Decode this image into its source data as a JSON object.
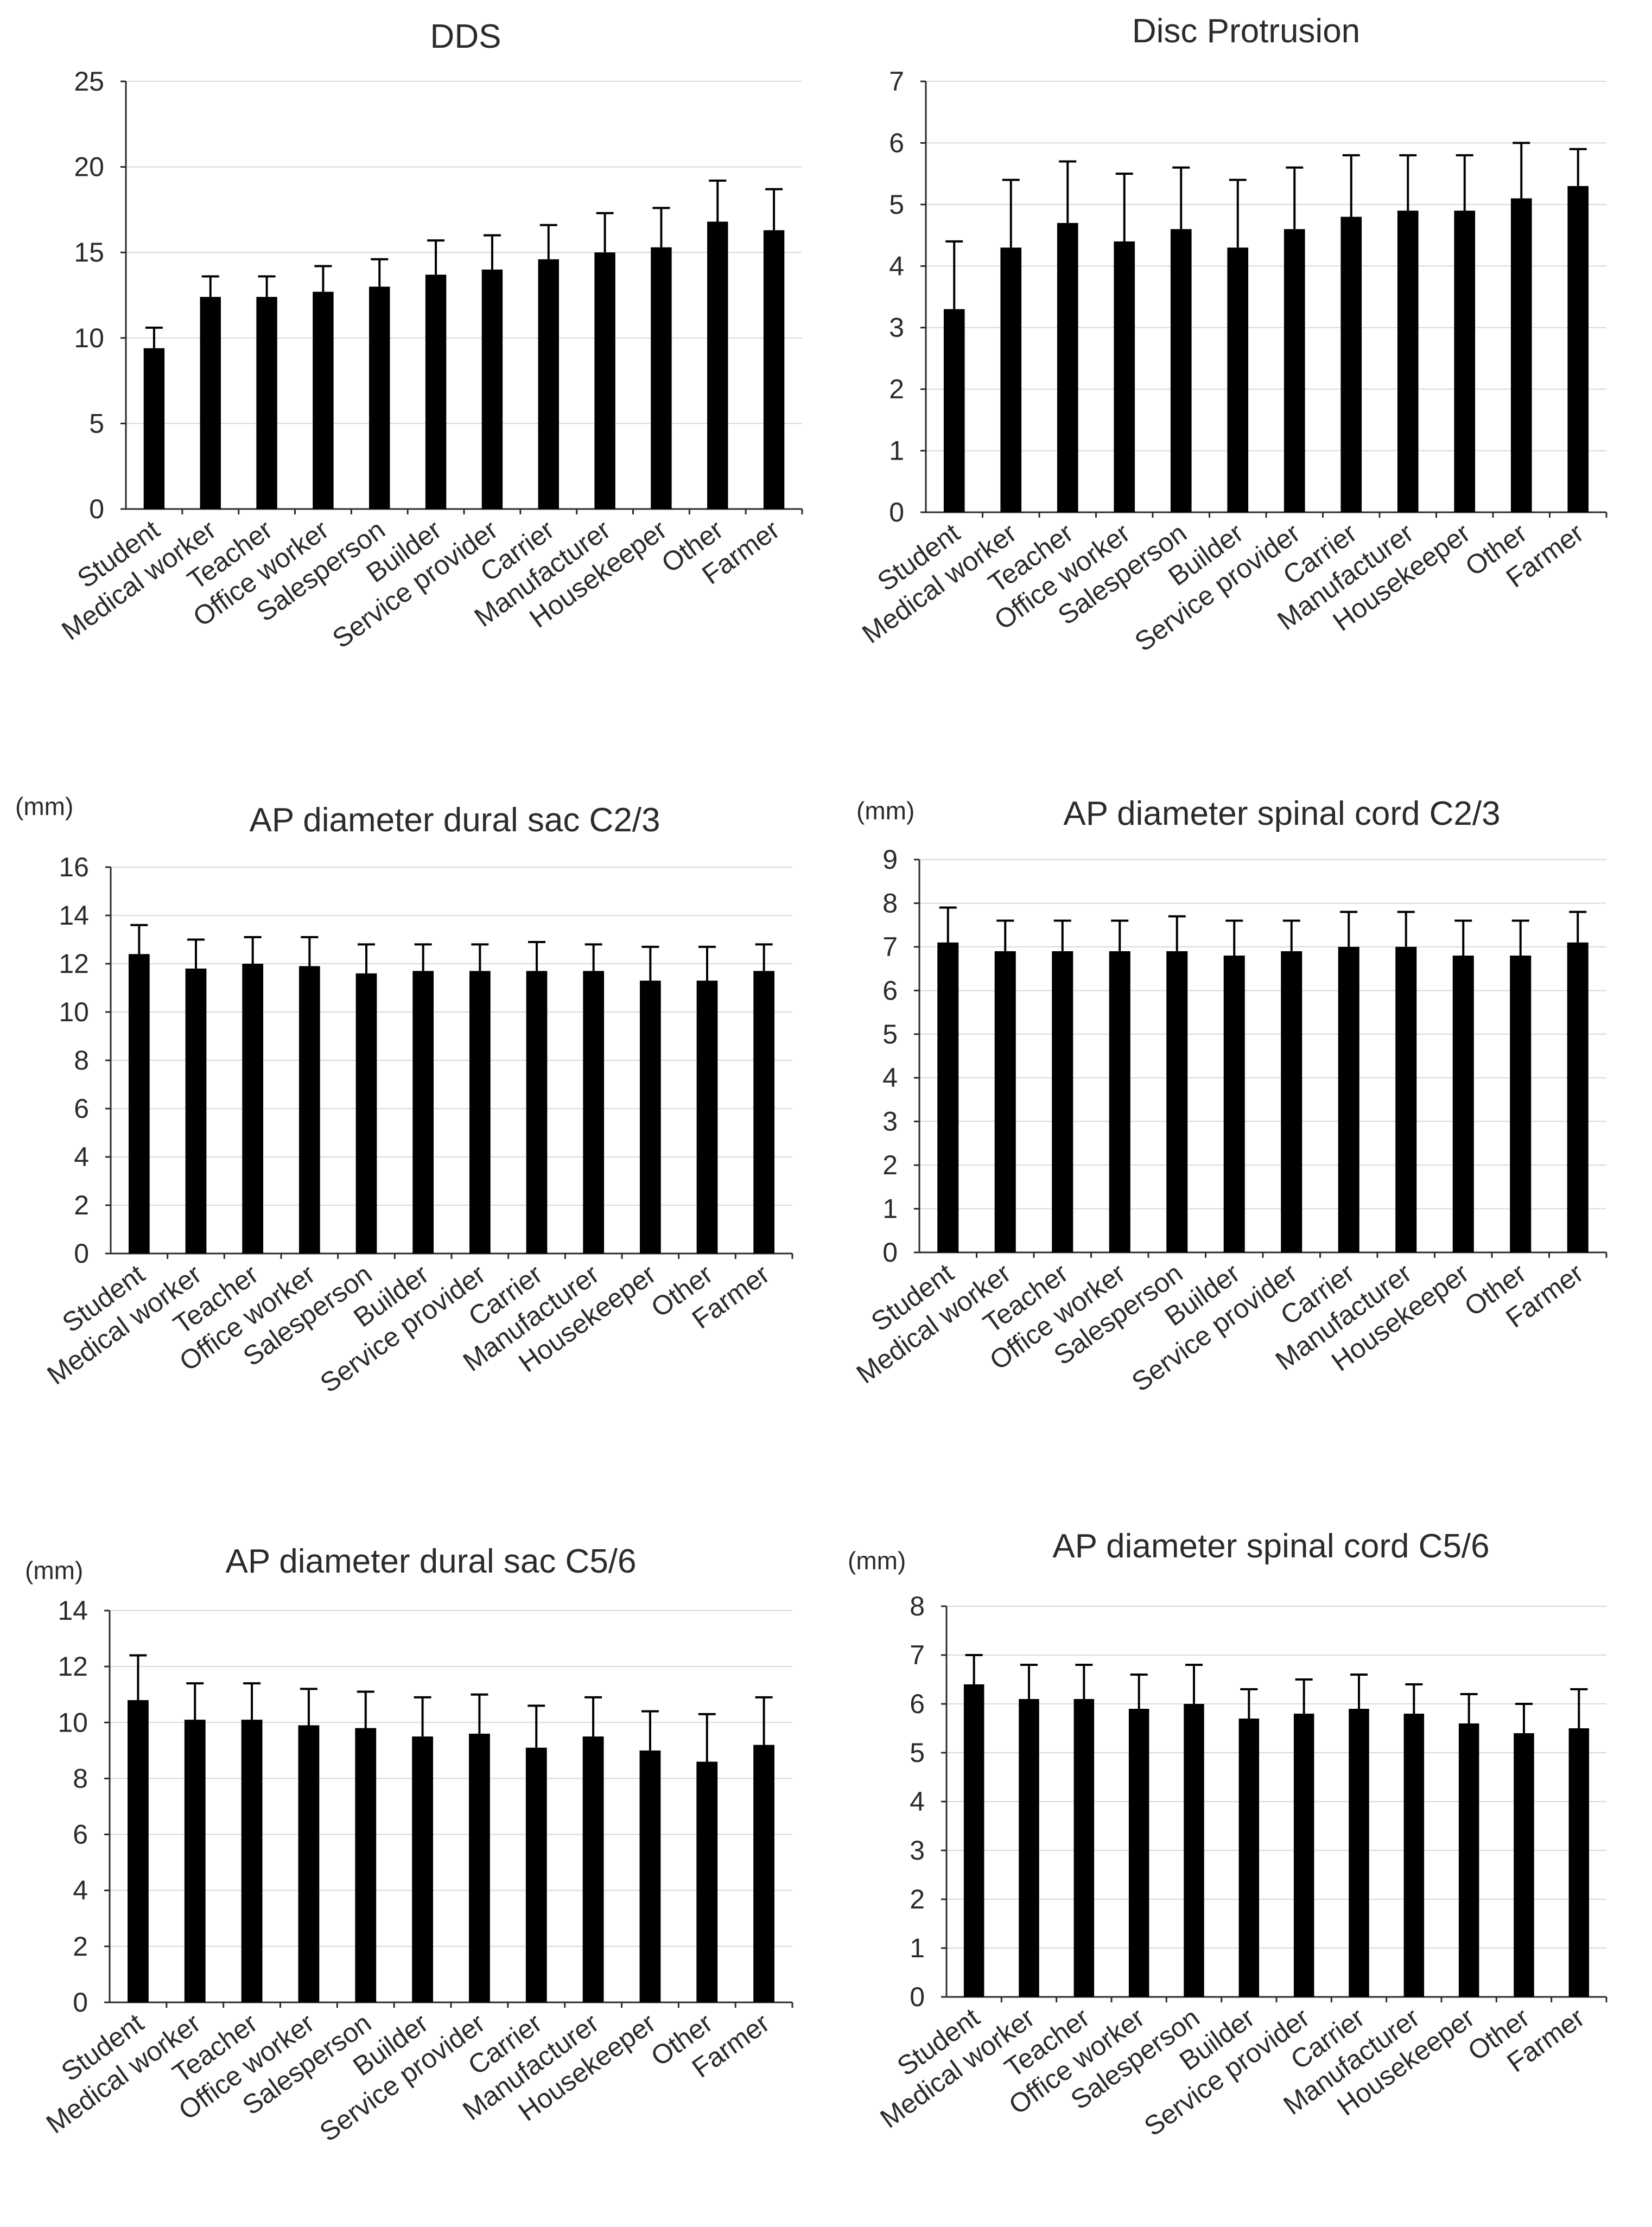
{
  "figure": {
    "colors": {
      "bar": "#000000",
      "axis": "#2b2b2b",
      "grid": "#d9d9d9",
      "text": "#2b2b2b"
    }
  },
  "chart_data": [
    {
      "type": "bar",
      "title": "DDS",
      "unit_label": "",
      "categories": [
        "Student",
        "Medical worker",
        "Teacher",
        "Office worker",
        "Salesperson",
        "Builder",
        "Service provider",
        "Carrier",
        "Manufacturer",
        "Housekeeper",
        "Other",
        "Farmer"
      ],
      "values": [
        9.4,
        12.4,
        12.4,
        12.7,
        13.0,
        13.7,
        14.0,
        14.6,
        15.0,
        15.3,
        16.8,
        16.3
      ],
      "error_upper": [
        1.2,
        1.2,
        1.2,
        1.5,
        1.6,
        2.0,
        2.0,
        2.0,
        2.3,
        2.3,
        2.4,
        2.4
      ],
      "yticks": [
        0,
        5,
        10,
        15,
        20,
        25
      ],
      "ylim": [
        0,
        25
      ],
      "grid": true
    },
    {
      "type": "bar",
      "title": "Disc Protrusion",
      "unit_label": "",
      "categories": [
        "Student",
        "Medical worker",
        "Teacher",
        "Office worker",
        "Salesperson",
        "Builder",
        "Service provider",
        "Carrier",
        "Manufacturer",
        "Housekeeper",
        "Other",
        "Farmer"
      ],
      "values": [
        3.3,
        4.3,
        4.7,
        4.4,
        4.6,
        4.3,
        4.6,
        4.8,
        4.9,
        4.9,
        5.1,
        5.3
      ],
      "error_upper": [
        1.1,
        1.1,
        1.0,
        1.1,
        1.0,
        1.1,
        1.0,
        1.0,
        0.9,
        0.9,
        0.9,
        0.6
      ],
      "yticks": [
        0,
        1,
        2,
        3,
        4,
        5,
        6,
        7
      ],
      "ylim": [
        0,
        7
      ],
      "grid": true
    },
    {
      "type": "bar",
      "title": "AP diameter dural sac C2/3",
      "unit_label": "(mm)",
      "categories": [
        "Student",
        "Medical worker",
        "Teacher",
        "Office worker",
        "Salesperson",
        "Builder",
        "Service provider",
        "Carrier",
        "Manufacturer",
        "Housekeeper",
        "Other",
        "Farmer"
      ],
      "values": [
        12.4,
        11.8,
        12.0,
        11.9,
        11.6,
        11.7,
        11.7,
        11.7,
        11.7,
        11.3,
        11.3,
        11.7
      ],
      "error_upper": [
        1.2,
        1.2,
        1.1,
        1.2,
        1.2,
        1.1,
        1.1,
        1.2,
        1.1,
        1.4,
        1.4,
        1.1
      ],
      "yticks": [
        0,
        2,
        4,
        6,
        8,
        10,
        12,
        14,
        16
      ],
      "ylim": [
        0,
        16
      ],
      "grid": true
    },
    {
      "type": "bar",
      "title": "AP diameter spinal cord C2/3",
      "unit_label": "(mm)",
      "categories": [
        "Student",
        "Medical worker",
        "Teacher",
        "Office worker",
        "Salesperson",
        "Builder",
        "Service provider",
        "Carrier",
        "Manufacturer",
        "Housekeeper",
        "Other",
        "Farmer"
      ],
      "values": [
        7.1,
        6.9,
        6.9,
        6.9,
        6.9,
        6.8,
        6.9,
        7.0,
        7.0,
        6.8,
        6.8,
        7.1
      ],
      "error_upper": [
        0.8,
        0.7,
        0.7,
        0.7,
        0.8,
        0.8,
        0.7,
        0.8,
        0.8,
        0.8,
        0.8,
        0.7
      ],
      "yticks": [
        0,
        1,
        2,
        3,
        4,
        5,
        6,
        7,
        8,
        9
      ],
      "ylim": [
        0,
        9
      ],
      "grid": true
    },
    {
      "type": "bar",
      "title": "AP diameter dural sac C5/6",
      "unit_label": "(mm)",
      "categories": [
        "Student",
        "Medical worker",
        "Teacher",
        "Office worker",
        "Salesperson",
        "Builder",
        "Service provider",
        "Carrier",
        "Manufacturer",
        "Housekeeper",
        "Other",
        "Farmer"
      ],
      "values": [
        10.8,
        10.1,
        10.1,
        9.9,
        9.8,
        9.5,
        9.6,
        9.1,
        9.5,
        9.0,
        8.6,
        9.2
      ],
      "error_upper": [
        1.6,
        1.3,
        1.3,
        1.3,
        1.3,
        1.4,
        1.4,
        1.5,
        1.4,
        1.4,
        1.7,
        1.7
      ],
      "yticks": [
        0,
        2,
        4,
        6,
        8,
        10,
        12,
        14
      ],
      "ylim": [
        0,
        14
      ],
      "grid": true
    },
    {
      "type": "bar",
      "title": "AP diameter spinal cord C5/6",
      "unit_label": "(mm)",
      "categories": [
        "Student",
        "Medical worker",
        "Teacher",
        "Office worker",
        "Salesperson",
        "Builder",
        "Service provider",
        "Carrier",
        "Manufacturer",
        "Housekeeper",
        "Other",
        "Farmer"
      ],
      "values": [
        6.4,
        6.1,
        6.1,
        5.9,
        6.0,
        5.7,
        5.8,
        5.9,
        5.8,
        5.6,
        5.4,
        5.5
      ],
      "error_upper": [
        0.6,
        0.7,
        0.7,
        0.7,
        0.8,
        0.6,
        0.7,
        0.7,
        0.6,
        0.6,
        0.6,
        0.8
      ],
      "yticks": [
        0,
        1,
        2,
        3,
        4,
        5,
        6,
        7,
        8
      ],
      "ylim": [
        0,
        8
      ],
      "grid": true
    }
  ]
}
